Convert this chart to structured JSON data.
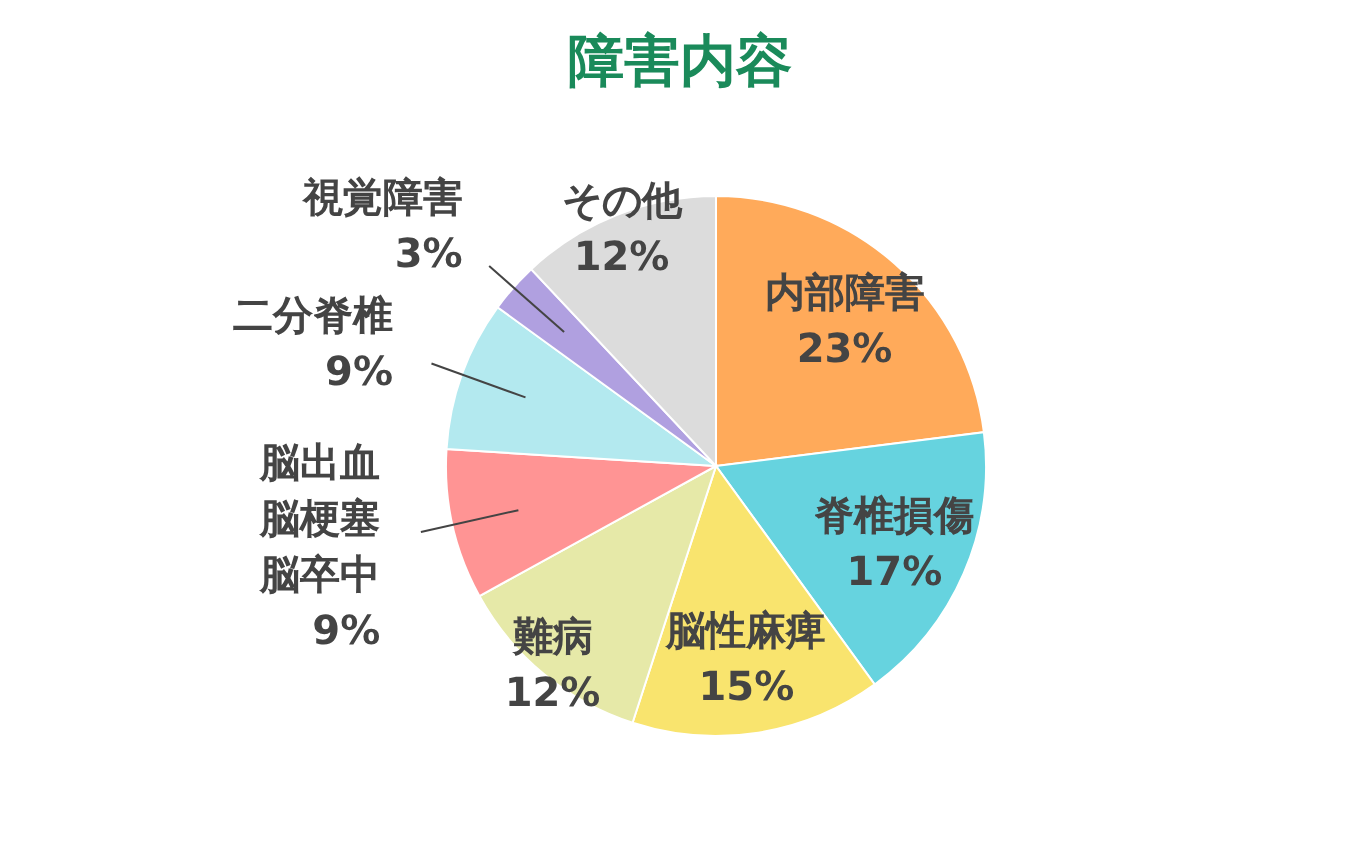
{
  "chart_data": {
    "type": "pie",
    "title": "障害内容",
    "categories": [
      "内部障害",
      "脊椎損傷",
      "脳性麻痺",
      "難病",
      "脳出血脳梗塞脳卒中",
      "二分脊椎",
      "視覚障害",
      "その他"
    ],
    "values": [
      23,
      17,
      15,
      12,
      9,
      9,
      3,
      12
    ],
    "colors": [
      "#ffaa5a",
      "#66d3df",
      "#f9e46e",
      "#e6e9a8",
      "#ff9494",
      "#b3e9ef",
      "#b0a0e0",
      "#dcdcdc"
    ],
    "value_labels": [
      "23%",
      "17%",
      "15%",
      "12%",
      "9%",
      "9%",
      "3%",
      "12%"
    ]
  }
}
